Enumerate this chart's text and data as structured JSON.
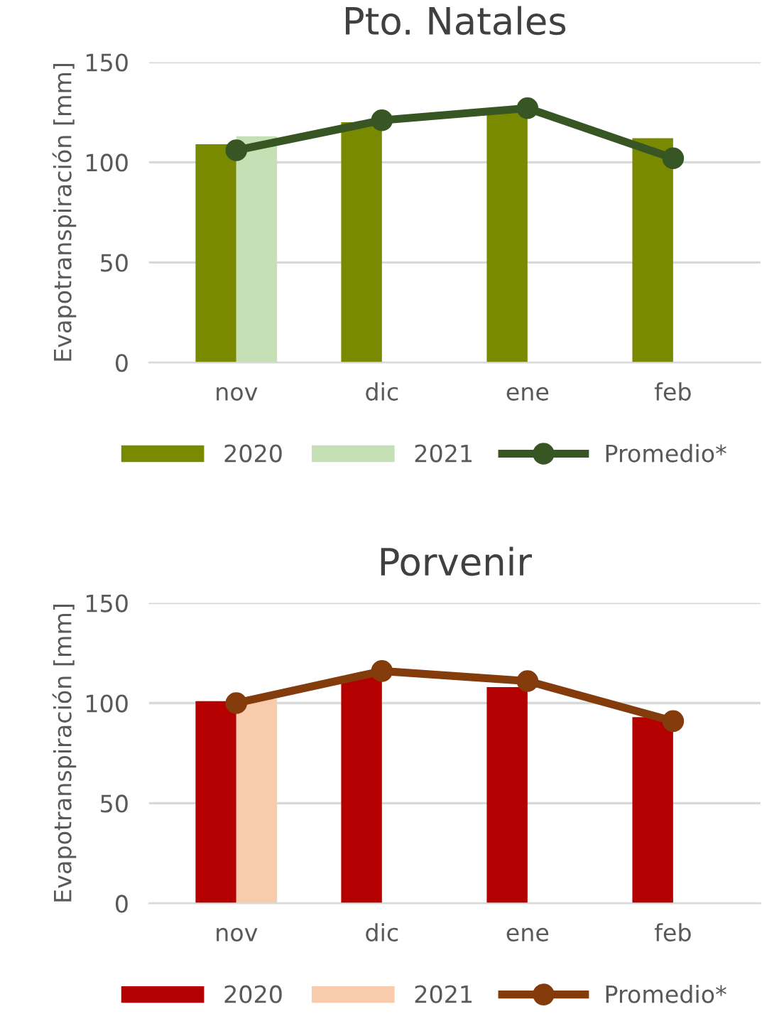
{
  "chart_data": [
    {
      "type": "bar",
      "title": "Pto. Natales",
      "ylabel": "Evapotranspiración [mm]",
      "categories": [
        "nov",
        "dic",
        "ene",
        "feb"
      ],
      "ylim": [
        0,
        150
      ],
      "yticks": [
        0,
        50,
        100,
        150
      ],
      "grid": "y",
      "legend": "bottom",
      "series": [
        {
          "name": "2020",
          "color": "#7a8a00",
          "values": [
            109,
            120,
            126,
            112
          ]
        },
        {
          "name": "2021",
          "color": "#c5e0b4",
          "values": [
            113,
            null,
            null,
            null
          ]
        },
        {
          "name": "Promedio*",
          "type": "line",
          "color": "#375623",
          "marker": "circle",
          "values": [
            106,
            121,
            127,
            102
          ]
        }
      ]
    },
    {
      "type": "bar",
      "title": "Porvenir",
      "ylabel": "Evapotranspiración [mm]",
      "categories": [
        "nov",
        "dic",
        "ene",
        "feb"
      ],
      "ylim": [
        0,
        150
      ],
      "yticks": [
        0,
        50,
        100,
        150
      ],
      "grid": "y",
      "legend": "bottom",
      "series": [
        {
          "name": "2020",
          "color": "#b40000",
          "values": [
            101,
            113,
            108,
            93
          ]
        },
        {
          "name": "2021",
          "color": "#f8cbad",
          "values": [
            102,
            null,
            null,
            null
          ]
        },
        {
          "name": "Promedio*",
          "type": "line",
          "color": "#843c0c",
          "marker": "circle",
          "values": [
            100,
            116,
            111,
            91
          ]
        }
      ]
    }
  ]
}
